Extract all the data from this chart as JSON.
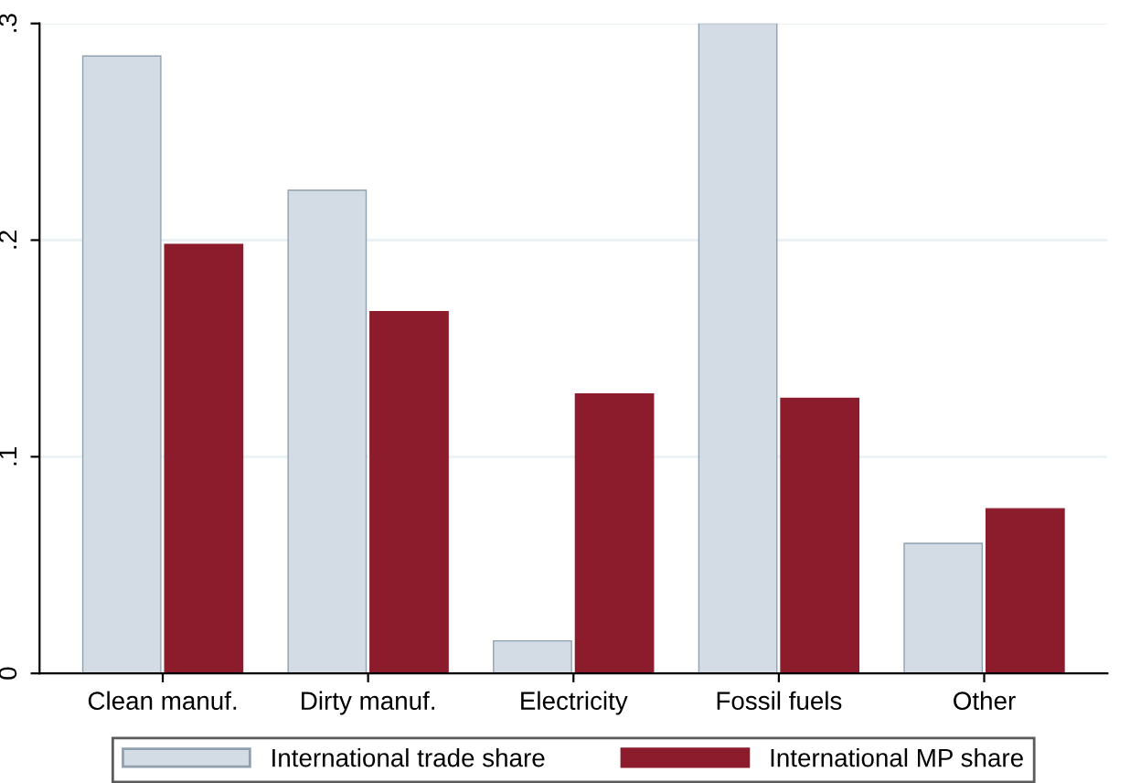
{
  "chart_data": {
    "type": "bar",
    "categories": [
      "Clean manuf.",
      "Dirty manuf.",
      "Electricity",
      "Fossil fuels",
      "Other"
    ],
    "series": [
      {
        "name": "International trade share",
        "color": "#d3dce4",
        "values": [
          0.285,
          0.223,
          0.015,
          0.3,
          0.06
        ]
      },
      {
        "name": "International MP share",
        "color": "#8c1c2c",
        "values": [
          0.198,
          0.167,
          0.129,
          0.127,
          0.076
        ]
      }
    ],
    "ylim": [
      0,
      0.3
    ],
    "yticks": [
      {
        "value": 0,
        "label": "0"
      },
      {
        "value": 0.1,
        "label": ".1"
      },
      {
        "value": 0.2,
        "label": ".2"
      },
      {
        "value": 0.3,
        "label": ".3"
      }
    ],
    "grid": "y",
    "legend": "bottom"
  }
}
